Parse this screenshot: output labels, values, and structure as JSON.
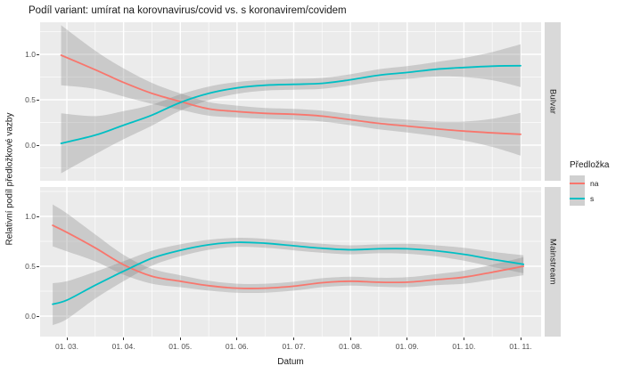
{
  "title": "Podíl variant: umírat na korovnavirus/covid vs. s koronavirem/covidem",
  "axes": {
    "x_title": "Datum",
    "y_title": "Relativní podíl předložkové vazby",
    "x_ticks": [
      "01. 03.",
      "01. 04.",
      "01. 05.",
      "01. 06.",
      "01. 07.",
      "01. 08.",
      "01. 09.",
      "01. 10.",
      "01. 11."
    ],
    "y_ticks": [
      "1.0",
      "0.5",
      "0.0"
    ],
    "y_tick_values": [
      1.0,
      0.5,
      0.0
    ]
  },
  "facets": [
    {
      "label": "Bulvar"
    },
    {
      "label": "Mainstream"
    }
  ],
  "legend": {
    "title": "Předložka",
    "items": [
      {
        "label": "na",
        "color": "#F8766D"
      },
      {
        "label": "s",
        "color": "#00BFC4"
      }
    ]
  },
  "colors": {
    "series_na": "#F8766D",
    "series_s": "#00BFC4",
    "panel_background": "#EBEBEB",
    "gridline": "#FFFFFF",
    "ribbon": "rgba(125,125,125,0.3)",
    "strip_background": "#D9D9D9",
    "axis_text": "#4d4d4d",
    "tick_mark": "#333333"
  },
  "chart_data": {
    "type": "line",
    "title": "Podíl variant: umírat na korovnavirus/covid vs. s koronavirem/covidem",
    "xlabel": "Datum",
    "ylabel": "Relativní podíl předložkové vazby",
    "x_axis": {
      "tick_labels": [
        "01. 03.",
        "01. 04.",
        "01. 05.",
        "01. 06.",
        "01. 07.",
        "01. 08.",
        "01. 09.",
        "01. 10.",
        "01. 11."
      ],
      "unit": "months_from_01_03"
    },
    "y_axis": {
      "tick_values": [
        0.0,
        0.5,
        1.0
      ],
      "ylim": [
        -0.3,
        1.3
      ]
    },
    "grid": true,
    "legend_position": "right",
    "mark": "smoothed line with gray confidence ribbon",
    "facets": [
      {
        "name": "Bulvar",
        "series": [
          {
            "name": "na",
            "color": "#F8766D",
            "x": [
              -0.1,
              0.5,
              1,
              1.5,
              2,
              2.5,
              3,
              3.5,
              4,
              4.5,
              5,
              5.5,
              6,
              6.5,
              7,
              7.5,
              8
            ],
            "y": [
              0.99,
              0.83,
              0.69,
              0.57,
              0.48,
              0.4,
              0.37,
              0.35,
              0.34,
              0.32,
              0.28,
              0.24,
              0.21,
              0.18,
              0.155,
              0.135,
              0.12
            ],
            "ribbon_halfwidth": [
              0.33,
              0.21,
              0.155,
              0.115,
              0.09,
              0.075,
              0.065,
              0.06,
              0.06,
              0.06,
              0.06,
              0.065,
              0.07,
              0.08,
              0.105,
              0.155,
              0.235
            ]
          },
          {
            "name": "s",
            "color": "#00BFC4",
            "x": [
              -0.1,
              0.5,
              1,
              1.5,
              2,
              2.5,
              3,
              3.5,
              4,
              4.5,
              5,
              5.5,
              6,
              6.5,
              7,
              7.5,
              8
            ],
            "y": [
              0.02,
              0.11,
              0.22,
              0.33,
              0.47,
              0.57,
              0.63,
              0.66,
              0.67,
              0.68,
              0.72,
              0.77,
              0.8,
              0.835,
              0.855,
              0.87,
              0.875
            ],
            "ribbon_halfwidth": [
              0.33,
              0.21,
              0.155,
              0.115,
              0.09,
              0.075,
              0.065,
              0.06,
              0.06,
              0.06,
              0.06,
              0.065,
              0.07,
              0.08,
              0.105,
              0.155,
              0.235
            ]
          }
        ]
      },
      {
        "name": "Mainstream",
        "series": [
          {
            "name": "na",
            "color": "#F8766D",
            "x": [
              -0.25,
              0,
              0.5,
              1,
              1.5,
              2,
              2.5,
              3,
              3.5,
              4,
              4.5,
              5,
              5.5,
              6,
              6.5,
              7,
              7.5,
              8.05
            ],
            "y": [
              0.91,
              0.84,
              0.685,
              0.515,
              0.4,
              0.35,
              0.305,
              0.28,
              0.28,
              0.3,
              0.335,
              0.35,
              0.34,
              0.34,
              0.365,
              0.39,
              0.44,
              0.5
            ],
            "ribbon_halfwidth": [
              0.21,
              0.19,
              0.135,
              0.1,
              0.075,
              0.06,
              0.05,
              0.045,
              0.045,
              0.045,
              0.045,
              0.045,
              0.045,
              0.05,
              0.055,
              0.065,
              0.075,
              0.09
            ]
          },
          {
            "name": "s",
            "color": "#00BFC4",
            "x": [
              -0.25,
              0,
              0.5,
              1,
              1.5,
              2,
              2.5,
              3,
              3.5,
              4,
              4.5,
              5,
              5.5,
              6,
              6.5,
              7,
              7.5,
              8.05
            ],
            "y": [
              0.12,
              0.16,
              0.31,
              0.45,
              0.58,
              0.66,
              0.715,
              0.74,
              0.73,
              0.705,
              0.68,
              0.665,
              0.675,
              0.675,
              0.655,
              0.62,
              0.57,
              0.52
            ],
            "ribbon_halfwidth": [
              0.21,
              0.19,
              0.135,
              0.1,
              0.075,
              0.06,
              0.05,
              0.045,
              0.045,
              0.045,
              0.045,
              0.045,
              0.045,
              0.05,
              0.055,
              0.065,
              0.075,
              0.09
            ]
          }
        ]
      }
    ]
  }
}
